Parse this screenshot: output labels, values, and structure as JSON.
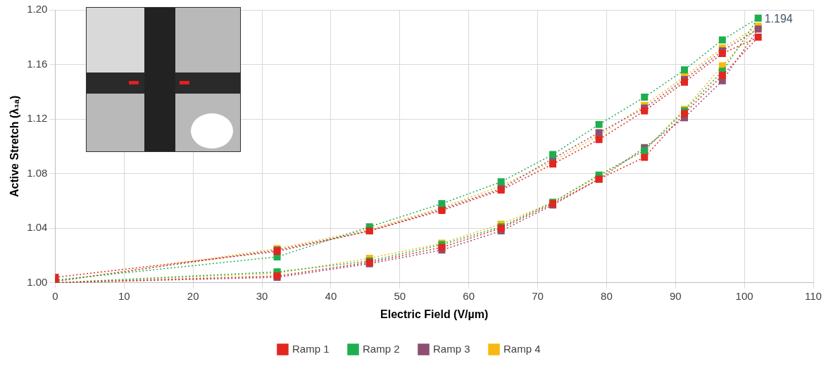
{
  "chart_data": {
    "type": "line",
    "x_label": "Electric Field (V/µm)",
    "y_label": "Active Stretch (λ₁ₐ)",
    "x": [
      0,
      32.2,
      45.6,
      56.1,
      64.7,
      72.2,
      78.9,
      85.5,
      91.3,
      96.8,
      102.0,
      96.8,
      91.3,
      85.5,
      78.9,
      72.2,
      64.7,
      56.1,
      45.6,
      32.2,
      0
    ],
    "series": [
      {
        "name": "Ramp 1",
        "color": "#e3261f",
        "marker": "square",
        "line_style": "dotted",
        "values": [
          1.0,
          1.005,
          1.015,
          1.026,
          1.04,
          1.058,
          1.076,
          1.092,
          1.124,
          1.152,
          1.18,
          1.168,
          1.147,
          1.126,
          1.105,
          1.087,
          1.068,
          1.053,
          1.038,
          1.023,
          1.004
        ]
      },
      {
        "name": "Ramp 2",
        "color": "#1fae4f",
        "marker": "square",
        "line_style": "dotted",
        "values": [
          1.0,
          1.008,
          1.016,
          1.028,
          1.041,
          1.059,
          1.079,
          1.097,
          1.126,
          1.155,
          1.194,
          1.178,
          1.156,
          1.136,
          1.116,
          1.094,
          1.074,
          1.058,
          1.041,
          1.019,
          1.002
        ]
      },
      {
        "name": "Ramp 3",
        "color": "#8f4f70",
        "marker": "square",
        "line_style": "dotted",
        "values": [
          1.0,
          1.004,
          1.014,
          1.024,
          1.038,
          1.057,
          1.076,
          1.099,
          1.121,
          1.148,
          1.186,
          1.17,
          1.149,
          1.128,
          1.11,
          1.091,
          1.069,
          1.054,
          1.038,
          1.024,
          1.001
        ]
      },
      {
        "name": "Ramp 4",
        "color": "#f7b90f",
        "marker": "square",
        "line_style": "dotted",
        "values": [
          1.0,
          1.007,
          1.018,
          1.029,
          1.043,
          1.059,
          1.078,
          1.097,
          1.127,
          1.159,
          1.188,
          1.172,
          1.151,
          1.13,
          1.108,
          1.089,
          1.071,
          1.055,
          1.039,
          1.025,
          1.001
        ]
      }
    ],
    "xlim": [
      0,
      110
    ],
    "xticks": [
      0,
      10,
      20,
      30,
      40,
      50,
      60,
      70,
      80,
      90,
      100,
      110
    ],
    "ylim": [
      1.0,
      1.2
    ],
    "yticks": [
      {
        "value": 1.0,
        "label": "1.00"
      },
      1.04,
      1.08,
      1.12,
      1.16,
      {
        "value": 1.2,
        "label": "1.20"
      }
    ],
    "grid": true,
    "legend": "bottom",
    "annotations": [
      {
        "text": "1.194",
        "x": 102.0,
        "y": 1.194
      }
    ]
  }
}
